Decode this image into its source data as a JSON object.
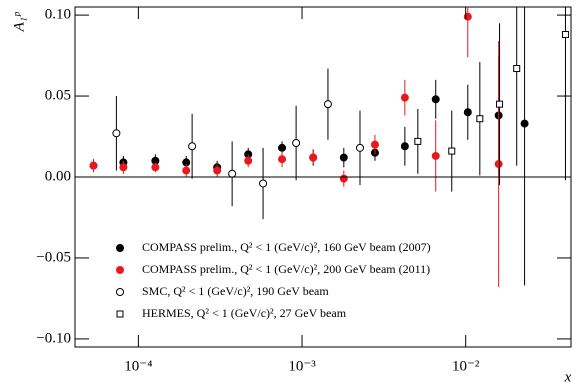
{
  "chart_data": {
    "type": "scatter",
    "xlabel": "x",
    "ylabel": "A₁ᵖ",
    "xscale": "log",
    "xlim": [
      4.1e-05,
      0.044
    ],
    "xticks": [
      {
        "value": 0.0001,
        "label": "10⁻⁴"
      },
      {
        "value": 0.001,
        "label": "10⁻³"
      },
      {
        "value": 0.01,
        "label": "10⁻²"
      }
    ],
    "ylim": [
      -0.105,
      0.105
    ],
    "yticks": [
      {
        "value": -0.1,
        "label": "−0.10"
      },
      {
        "value": -0.05,
        "label": "−0.05"
      },
      {
        "value": 0,
        "label": "0.00"
      },
      {
        "value": 0.05,
        "label": "0.05"
      },
      {
        "value": 0.1,
        "label": "0.10"
      }
    ],
    "zero_line": true,
    "series": [
      {
        "name": "COMPASS prelim., Q² < 1 (GeV/c)², 160 GeV beam (2007)",
        "color": "#000000",
        "marker": "circle",
        "filled": true,
        "x": [
          5.32e-05,
          8.1e-05,
          0.000127,
          0.000196,
          0.000303,
          0.000469,
          0.000755,
          0.00117,
          0.0018,
          0.00279,
          0.00425,
          0.00656,
          0.0103,
          0.0159,
          0.0229
        ],
        "values": [
          0.007,
          0.009,
          0.01,
          0.009,
          0.006,
          0.014,
          0.018,
          0.012,
          0.012,
          0.015,
          0.019,
          0.048,
          0.04,
          0.038,
          0.033
        ],
        "errors": [
          0.004,
          0.004,
          0.004,
          0.004,
          0.004,
          0.004,
          0.004,
          0.005,
          0.006,
          0.005,
          0.012,
          0.012,
          0.017,
          0.037,
          0.1
        ]
      },
      {
        "name": "COMPASS prelim., Q² < 1 (GeV/c)², 200 GeV beam (2011)",
        "color": "#e8181e",
        "marker": "circle",
        "filled": true,
        "x": [
          5.32e-05,
          8.1e-05,
          0.000127,
          0.000196,
          0.000303,
          0.000469,
          0.000755,
          0.00117,
          0.0018,
          0.00279,
          0.00425,
          0.00656,
          0.0103,
          0.0159
        ],
        "values": [
          0.007,
          0.006,
          0.006,
          0.004,
          0.004,
          0.01,
          0.011,
          0.012,
          -0.001,
          0.02,
          0.049,
          0.013,
          0.099,
          0.008
        ],
        "errors": [
          0.004,
          0.004,
          0.003,
          0.004,
          0.004,
          0.004,
          0.005,
          0.004,
          0.005,
          0.006,
          0.011,
          0.022,
          0.025,
          0.076
        ]
      },
      {
        "name": "SMC,  Q² < 1 (GeV/c)², 190 GeV beam",
        "color": "#000000",
        "marker": "circle",
        "filled": false,
        "x": [
          7.34e-05,
          0.000213,
          0.000374,
          0.000578,
          0.00092,
          0.00144,
          0.00226
        ],
        "values": [
          0.027,
          0.019,
          0.002,
          -0.004,
          0.021,
          0.045,
          0.018
        ],
        "errors": [
          0.023,
          0.02,
          0.02,
          0.022,
          0.023,
          0.022,
          0.023
        ]
      },
      {
        "name": "HERMES,  Q² < 1 (GeV/c)², 27 GeV beam",
        "color": "#000000",
        "marker": "square",
        "filled": false,
        "x": [
          0.0051,
          0.00822,
          0.0122,
          0.0161,
          0.0205,
          0.0407
        ],
        "values": [
          0.022,
          0.016,
          0.036,
          0.045,
          0.067,
          0.088
        ],
        "errors": [
          0.02,
          0.025,
          0.035,
          0.05,
          0.06,
          0.09
        ]
      }
    ]
  }
}
